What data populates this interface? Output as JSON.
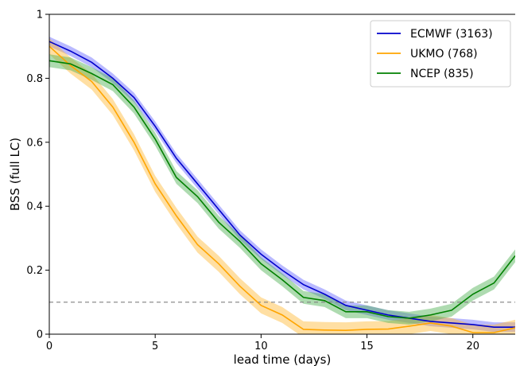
{
  "chart_data": {
    "type": "line",
    "title": "",
    "xlabel": "lead time (days)",
    "ylabel": "BSS (full LC)",
    "xlim": [
      0,
      22
    ],
    "ylim": [
      0,
      1
    ],
    "xticks": [
      0,
      5,
      10,
      15,
      20
    ],
    "yticks": [
      0,
      0.2,
      0.4,
      0.6,
      0.8,
      1
    ],
    "xtick_labels": [
      "0",
      "5",
      "10",
      "15",
      "20"
    ],
    "ytick_labels": [
      "0",
      "0.2",
      "0.4",
      "0.6",
      "0.8",
      "1"
    ],
    "grid": false,
    "legend_position": "top-right",
    "reference_line": {
      "y": 0.1,
      "style": "dashed",
      "color": "#808080"
    },
    "series": [
      {
        "name": "ECMWF (3163)",
        "color": "#0000cc",
        "band_color": "#6464ff",
        "x": [
          0,
          1,
          2,
          3,
          4,
          5,
          6,
          7,
          8,
          9,
          10,
          11,
          12,
          13,
          14,
          15,
          16,
          17,
          18,
          19,
          20,
          21,
          22
        ],
        "y": [
          0.915,
          0.885,
          0.85,
          0.8,
          0.74,
          0.65,
          0.55,
          0.47,
          0.39,
          0.31,
          0.25,
          0.2,
          0.155,
          0.125,
          0.09,
          0.075,
          0.06,
          0.05,
          0.04,
          0.035,
          0.03,
          0.022,
          0.022
        ],
        "band": 0.015
      },
      {
        "name": "UKMO (768)",
        "color": "#ffa500",
        "band_color": "#ffb833",
        "x": [
          0,
          1,
          2,
          3,
          4,
          5,
          6,
          7,
          8,
          9,
          10,
          11,
          12,
          13,
          14,
          15,
          16,
          17,
          18,
          19,
          20,
          21,
          22
        ],
        "y": [
          0.9,
          0.84,
          0.79,
          0.71,
          0.6,
          0.47,
          0.37,
          0.28,
          0.22,
          0.15,
          0.09,
          0.06,
          0.015,
          0.013,
          0.012,
          0.015,
          0.016,
          0.025,
          0.035,
          0.025,
          0.005,
          0.005,
          0.02
        ],
        "band": 0.025
      },
      {
        "name": "NCEP (835)",
        "color": "#008000",
        "band_color": "#4caf50",
        "x": [
          0,
          1,
          2,
          3,
          4,
          5,
          6,
          7,
          8,
          9,
          10,
          11,
          12,
          13,
          14,
          15,
          16,
          17,
          18,
          19,
          20,
          21,
          22
        ],
        "y": [
          0.855,
          0.845,
          0.815,
          0.78,
          0.71,
          0.61,
          0.49,
          0.43,
          0.35,
          0.29,
          0.22,
          0.17,
          0.115,
          0.105,
          0.07,
          0.07,
          0.055,
          0.05,
          0.06,
          0.075,
          0.125,
          0.16,
          0.245
        ],
        "band": 0.02
      }
    ]
  }
}
